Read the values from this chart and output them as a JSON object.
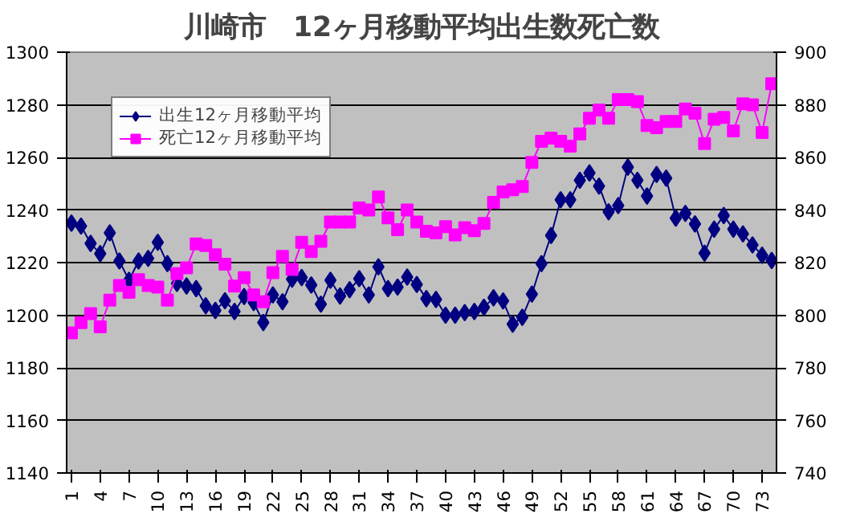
{
  "chart_data": {
    "type": "line",
    "title": "川崎市　12ヶ月移動平均出生数死亡数",
    "categories": [
      "1",
      null,
      null,
      "4",
      null,
      null,
      "7",
      null,
      null,
      "10",
      null,
      null,
      "13",
      null,
      null,
      "16",
      null,
      null,
      "19",
      null,
      null,
      "22",
      null,
      null,
      "25",
      null,
      null,
      "28",
      null,
      null,
      "31",
      null,
      null,
      "34",
      null,
      null,
      "37",
      null,
      null,
      "40",
      null,
      null,
      "43",
      null,
      null,
      "46",
      null,
      null,
      "49",
      null,
      null,
      "52",
      null,
      null,
      "55",
      null,
      null,
      "58",
      null,
      null,
      "61",
      null,
      null,
      "64",
      null,
      null,
      "67",
      null,
      null,
      "70",
      null,
      null,
      "73",
      null
    ],
    "series": [
      {
        "name": "出生12ヶ月移動平均",
        "color": "#000080",
        "marker": "diamond",
        "values": [
          1235.0,
          1233.9,
          1227.3,
          1223.4,
          1231.3,
          1220.6,
          1213.3,
          1220.6,
          1221.6,
          1227.7,
          1219.6,
          1212.1,
          1211.1,
          1210.1,
          1203.6,
          1201.8,
          1205.5,
          1201.4,
          1207.1,
          1204.8,
          1197.2,
          1207.7,
          1205.1,
          1213.7,
          1214.3,
          1211.5,
          1204.2,
          1213.3,
          1207.3,
          1209.7,
          1213.9,
          1207.7,
          1218.4,
          1210.1,
          1210.7,
          1214.5,
          1211.7,
          1206.3,
          1206.0,
          1200.0,
          1200.0,
          1201.0,
          1201.4,
          1203.0,
          1206.6,
          1205.4,
          1196.6,
          1199.2,
          1208.0,
          1219.6,
          1230.3,
          1243.9,
          1243.9,
          1251.3,
          1254.1,
          1249.1,
          1239.3,
          1241.7,
          1256.3,
          1251.3,
          1245.3,
          1253.5,
          1252.1,
          1236.9,
          1238.7,
          1234.7,
          1223.6,
          1232.7,
          1237.9,
          1232.7,
          1230.9,
          1226.7,
          1222.8,
          1220.8
        ]
      },
      {
        "name": "死亡12ヶ月移動平均",
        "color": "#ff00ff",
        "marker": "square",
        "axis": "y2",
        "values": [
          793.3,
          797.2,
          800.6,
          795.6,
          805.7,
          811.3,
          808.7,
          813.5,
          811.3,
          810.7,
          805.7,
          815.8,
          818.0,
          827.1,
          826.5,
          823.0,
          819.4,
          811.1,
          814.3,
          807.7,
          805.1,
          816.2,
          822.4,
          817.4,
          827.7,
          824.2,
          828.1,
          835.4,
          835.4,
          835.4,
          840.8,
          840.0,
          845.0,
          837.0,
          832.5,
          840.0,
          835.4,
          831.9,
          831.3,
          833.7,
          830.5,
          833.3,
          832.1,
          834.9,
          842.9,
          846.9,
          847.7,
          848.9,
          858.1,
          866.1,
          867.3,
          866.1,
          864.3,
          868.9,
          874.9,
          878.0,
          874.9,
          882.0,
          882.0,
          881.2,
          872.1,
          871.3,
          873.7,
          873.7,
          878.4,
          876.8,
          865.3,
          874.5,
          875.2,
          870.1,
          880.4,
          880.0,
          869.5,
          888.0
        ]
      }
    ],
    "ylim": [
      1140,
      1300
    ],
    "yticks": [
      1140,
      1160,
      1180,
      1200,
      1220,
      1240,
      1260,
      1280,
      1300
    ],
    "y2lim": [
      740,
      900
    ],
    "y2ticks": [
      740,
      760,
      780,
      800,
      820,
      840,
      860,
      880,
      900
    ],
    "grid": "y",
    "legend": "top left"
  }
}
